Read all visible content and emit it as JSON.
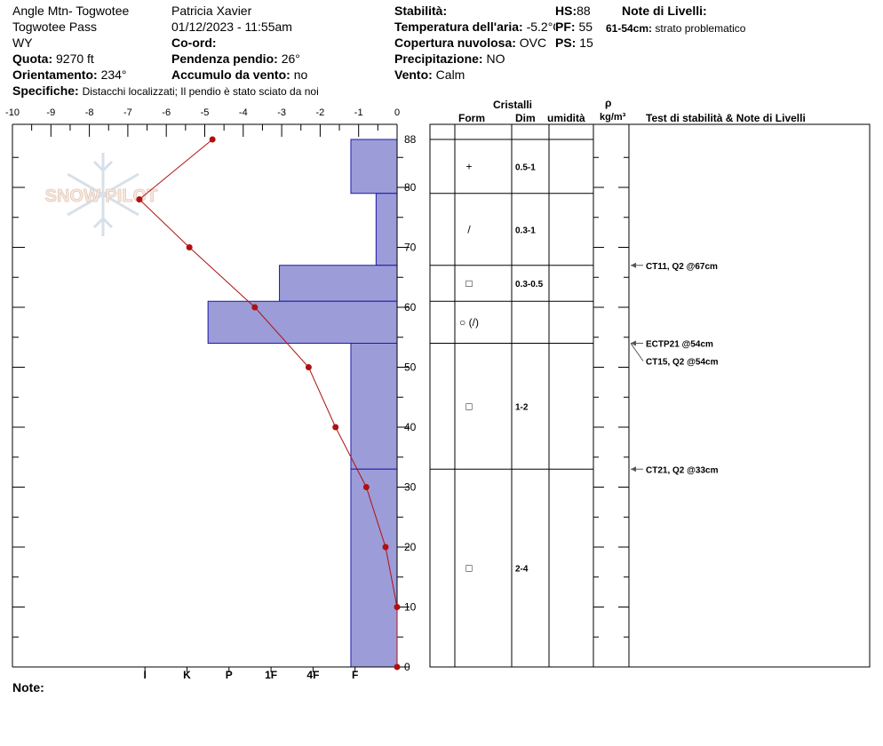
{
  "header": {
    "location": "Angle Mtn- Togwotee",
    "area": "Togwotee Pass",
    "state": "WY",
    "elevation_label": "Quota:",
    "elevation_value": "9270 ft",
    "aspect_label": "Orientamento:",
    "aspect_value": "234°",
    "specifics_label": "Specifiche:",
    "specifics_value": "Distacchi localizzati;  Il pendio è stato sciato da noi",
    "observer": "Patricia Xavier",
    "datetime": "01/12/2023 - 11:55am",
    "coord_label": "Co-ord:",
    "slope_label": "Pendenza pendio:",
    "slope_value": "26°",
    "wind_loading_label": "Accumulo da vento:",
    "wind_loading_value": "no",
    "stability_label": "Stabilità:",
    "air_temp_label": "Temperatura dell'aria:",
    "air_temp_value": "-5.2°C",
    "sky_label": "Copertura nuvolosa:",
    "sky_value": "OVC",
    "precip_label": "Precipitazione:",
    "precip_value": "NO",
    "wind_label": "Vento:",
    "wind_value": "Calm",
    "hs_label": "HS:",
    "hs_value": "88",
    "pf_label": "PF:",
    "pf_value": "55",
    "ps_label": "PS:",
    "ps_value": "15",
    "layer_notes_title": "Note di Livelli:",
    "layer_note_range": "61-54cm:",
    "layer_note_text": "strato problematico"
  },
  "footer": {
    "notes_label": "Note:"
  },
  "watermark": "SNOW PILOT",
  "colors": {
    "hardness_fill": "#9c9cd8",
    "hardness_stroke": "#1a1aa8",
    "temp_line": "#b01010"
  },
  "table_headers": {
    "crystals": "Cristalli",
    "form": "Form",
    "size": "Dim",
    "moisture": "umidità",
    "rho": "ρ",
    "density_unit": "kg/m³",
    "tests": "Test di stabilità & Note di Livelli"
  },
  "chart_data": {
    "type": "snow-profile",
    "temperature_axis": {
      "ticks": [
        "-10",
        "-9",
        "-8",
        "-7",
        "-6",
        "-5",
        "-4",
        "-3",
        "-2",
        "-1",
        "0"
      ],
      "range": [
        -10,
        0
      ]
    },
    "height_axis": {
      "ticks": [
        "88",
        "80",
        "70",
        "60",
        "50",
        "40",
        "30",
        "20",
        "10",
        "0"
      ],
      "range": [
        0,
        88
      ],
      "unit": "cm"
    },
    "hardness_axis": {
      "labels": [
        "I",
        "K",
        "P",
        "1F",
        "4F",
        "F"
      ],
      "values": [
        6,
        5,
        4,
        3,
        2,
        1
      ]
    },
    "hardness_profile": [
      {
        "top": 88,
        "bottom": 79,
        "hardness": 1.1
      },
      {
        "top": 79,
        "bottom": 67,
        "hardness": 0.5
      },
      {
        "top": 67,
        "bottom": 61,
        "hardness": 2.8
      },
      {
        "top": 61,
        "bottom": 54,
        "hardness": 4.5
      },
      {
        "top": 54,
        "bottom": 33,
        "hardness": 1.1
      },
      {
        "top": 33,
        "bottom": 0,
        "hardness": 1.1
      }
    ],
    "temperature_profile": [
      {
        "height": 88,
        "temp": -4.8
      },
      {
        "height": 78,
        "temp": -6.7
      },
      {
        "height": 70,
        "temp": -5.4
      },
      {
        "height": 60,
        "temp": -3.7
      },
      {
        "height": 50,
        "temp": -2.3
      },
      {
        "height": 40,
        "temp": -1.6
      },
      {
        "height": 30,
        "temp": -0.8
      },
      {
        "height": 20,
        "temp": -0.3
      },
      {
        "height": 10,
        "temp": 0.0
      },
      {
        "height": 0,
        "temp": 0.0
      }
    ],
    "layers": [
      {
        "top": 88,
        "bottom": 79,
        "form": "+",
        "size": "0.5-1"
      },
      {
        "top": 79,
        "bottom": 67,
        "form": "/",
        "size": "0.3-1"
      },
      {
        "top": 67,
        "bottom": 61,
        "form": "□",
        "size": "0.3-0.5"
      },
      {
        "top": 61,
        "bottom": 54,
        "form": "○ (/)",
        "size": ""
      },
      {
        "top": 54,
        "bottom": 33,
        "form": "□",
        "size": "1-2"
      },
      {
        "top": 33,
        "bottom": 0,
        "form": "□",
        "size": "2-4"
      }
    ],
    "tests": [
      {
        "height": 67,
        "text": "CT11, Q2 @67cm"
      },
      {
        "height": 54,
        "text": "ECTP21 @54cm"
      },
      {
        "height": 54,
        "text": "CT15, Q2 @54cm"
      },
      {
        "height": 33,
        "text": "CT21, Q2 @33cm"
      }
    ]
  }
}
